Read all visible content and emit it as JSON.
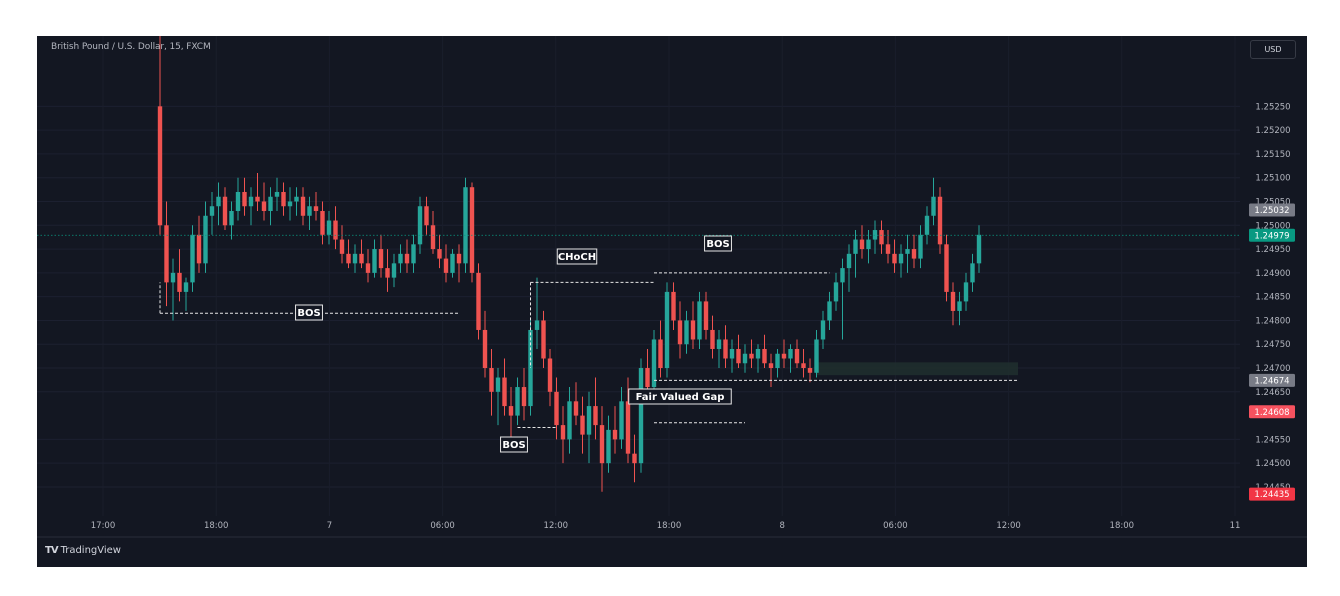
{
  "header": {
    "symbol_title": "British Pound / U.S. Dollar, 15, FXCM",
    "currency": "USD"
  },
  "footer": {
    "brand_mark": "TV",
    "brand_name": "TradingView"
  },
  "colors": {
    "background": "#131722",
    "bullish": "#26a69a",
    "bearish": "#ef5350",
    "current_price_line": "#089981",
    "axis_text": "#b2b5be",
    "zone_fill": "#1f2d2d"
  },
  "chart_data": {
    "type": "candlestick",
    "title": "British Pound / U.S. Dollar, 15, FXCM",
    "y_axis": {
      "min": 1.2441,
      "max": 1.2536,
      "ticks": [
        "1.25250",
        "1.25200",
        "1.25150",
        "1.25100",
        "1.25050",
        "1.25000",
        "1.24950",
        "1.24900",
        "1.24850",
        "1.24800",
        "1.24750",
        "1.24700",
        "1.24650",
        "1.24550",
        "1.24500",
        "1.24450"
      ]
    },
    "x_axis": {
      "ticks": [
        "17:00",
        "18:00",
        "7",
        "06:00",
        "12:00",
        "18:00",
        "8",
        "06:00",
        "12:00",
        "18:00",
        "11"
      ]
    },
    "price_labels": [
      {
        "text": "1.25032",
        "value": 1.25032,
        "color": "#787b86"
      },
      {
        "text": "1.24979",
        "value": 1.24979,
        "color": "#089981"
      },
      {
        "text": "1.24674",
        "value": 1.24674,
        "color": "#787b86"
      },
      {
        "text": "1.24608",
        "value": 1.24608,
        "color": "#f7525f"
      },
      {
        "text": "1.24435",
        "value": 1.24435,
        "color": "#f23645"
      }
    ],
    "current_price": 1.24979,
    "candles": [
      [
        1.2525,
        1.254,
        1.2498,
        1.25
      ],
      [
        1.25,
        1.2505,
        1.2483,
        1.2488
      ],
      [
        1.2488,
        1.2493,
        1.248,
        1.249
      ],
      [
        1.249,
        1.2495,
        1.2484,
        1.2486
      ],
      [
        1.2486,
        1.2489,
        1.2482,
        1.2488
      ],
      [
        1.2488,
        1.25,
        1.2486,
        1.2498
      ],
      [
        1.2498,
        1.2502,
        1.249,
        1.2492
      ],
      [
        1.2492,
        1.2505,
        1.249,
        1.2502
      ],
      [
        1.2502,
        1.2507,
        1.2498,
        1.2504
      ],
      [
        1.2504,
        1.2509,
        1.25,
        1.2506
      ],
      [
        1.2506,
        1.2508,
        1.2499,
        1.25
      ],
      [
        1.25,
        1.2505,
        1.2497,
        1.2503
      ],
      [
        1.2503,
        1.251,
        1.2501,
        1.2507
      ],
      [
        1.2507,
        1.251,
        1.2502,
        1.2504
      ],
      [
        1.2504,
        1.2508,
        1.25,
        1.2506
      ],
      [
        1.2506,
        1.2511,
        1.2503,
        1.2505
      ],
      [
        1.2505,
        1.2509,
        1.2501,
        1.2503
      ],
      [
        1.2503,
        1.2508,
        1.25,
        1.2506
      ],
      [
        1.2506,
        1.251,
        1.2503,
        1.2507
      ],
      [
        1.2507,
        1.2509,
        1.2502,
        1.2504
      ],
      [
        1.2504,
        1.2508,
        1.2501,
        1.2505
      ],
      [
        1.2505,
        1.2508,
        1.2502,
        1.2506
      ],
      [
        1.2506,
        1.2508,
        1.25,
        1.2502
      ],
      [
        1.2502,
        1.2506,
        1.2499,
        1.2504
      ],
      [
        1.2504,
        1.2507,
        1.2501,
        1.2503
      ],
      [
        1.2503,
        1.2505,
        1.2496,
        1.2498
      ],
      [
        1.2498,
        1.2503,
        1.2496,
        1.2501
      ],
      [
        1.2501,
        1.2504,
        1.2495,
        1.2497
      ],
      [
        1.2497,
        1.25,
        1.2492,
        1.2494
      ],
      [
        1.2494,
        1.2497,
        1.2491,
        1.2492
      ],
      [
        1.2492,
        1.2496,
        1.249,
        1.2494
      ],
      [
        1.2494,
        1.2497,
        1.2491,
        1.2492
      ],
      [
        1.2492,
        1.2495,
        1.2488,
        1.249
      ],
      [
        1.249,
        1.2497,
        1.2489,
        1.2495
      ],
      [
        1.2495,
        1.2498,
        1.2489,
        1.2491
      ],
      [
        1.2491,
        1.2495,
        1.2486,
        1.2489
      ],
      [
        1.2489,
        1.2494,
        1.2487,
        1.2492
      ],
      [
        1.2492,
        1.2496,
        1.249,
        1.2494
      ],
      [
        1.2494,
        1.2497,
        1.249,
        1.2492
      ],
      [
        1.2492,
        1.2498,
        1.249,
        1.2496
      ],
      [
        1.2496,
        1.2506,
        1.2494,
        1.2504
      ],
      [
        1.2504,
        1.2506,
        1.2498,
        1.25
      ],
      [
        1.25,
        1.2503,
        1.2494,
        1.2495
      ],
      [
        1.2495,
        1.2498,
        1.2491,
        1.2493
      ],
      [
        1.2493,
        1.2496,
        1.2488,
        1.249
      ],
      [
        1.249,
        1.2495,
        1.2489,
        1.2494
      ],
      [
        1.2494,
        1.2496,
        1.2488,
        1.2492
      ],
      [
        1.2492,
        1.251,
        1.249,
        1.2508
      ],
      [
        1.2508,
        1.2509,
        1.2488,
        1.249
      ],
      [
        1.249,
        1.2492,
        1.2476,
        1.2478
      ],
      [
        1.2478,
        1.2482,
        1.2468,
        1.247
      ],
      [
        1.247,
        1.2474,
        1.246,
        1.2465
      ],
      [
        1.2465,
        1.247,
        1.2458,
        1.2468
      ],
      [
        1.2468,
        1.2472,
        1.246,
        1.2462
      ],
      [
        1.2462,
        1.2466,
        1.2455,
        1.246
      ],
      [
        1.246,
        1.2468,
        1.2458,
        1.2466
      ],
      [
        1.2466,
        1.247,
        1.2459,
        1.2462
      ],
      [
        1.2462,
        1.248,
        1.246,
        1.2478
      ],
      [
        1.2478,
        1.2489,
        1.2474,
        1.248
      ],
      [
        1.248,
        1.2482,
        1.247,
        1.2472
      ],
      [
        1.2472,
        1.2474,
        1.2462,
        1.2465
      ],
      [
        1.2465,
        1.2468,
        1.2455,
        1.2458
      ],
      [
        1.2458,
        1.2462,
        1.245,
        1.2455
      ],
      [
        1.2455,
        1.2466,
        1.2452,
        1.2463
      ],
      [
        1.2463,
        1.2467,
        1.2458,
        1.246
      ],
      [
        1.246,
        1.2464,
        1.2452,
        1.2456
      ],
      [
        1.2456,
        1.2465,
        1.245,
        1.2462
      ],
      [
        1.2462,
        1.2468,
        1.2455,
        1.2458
      ],
      [
        1.2458,
        1.2462,
        1.2444,
        1.245
      ],
      [
        1.245,
        1.246,
        1.2448,
        1.2457
      ],
      [
        1.2457,
        1.2462,
        1.2452,
        1.2455
      ],
      [
        1.2455,
        1.2466,
        1.2453,
        1.2463
      ],
      [
        1.2463,
        1.2468,
        1.245,
        1.2452
      ],
      [
        1.2452,
        1.2456,
        1.2446,
        1.245
      ],
      [
        1.245,
        1.2472,
        1.2448,
        1.247
      ],
      [
        1.247,
        1.2474,
        1.2464,
        1.2466
      ],
      [
        1.2466,
        1.2478,
        1.2463,
        1.2476
      ],
      [
        1.2476,
        1.248,
        1.2468,
        1.247
      ],
      [
        1.247,
        1.2488,
        1.2468,
        1.2486
      ],
      [
        1.2486,
        1.2488,
        1.2478,
        1.248
      ],
      [
        1.248,
        1.2484,
        1.2472,
        1.2475
      ],
      [
        1.2475,
        1.2482,
        1.2473,
        1.248
      ],
      [
        1.248,
        1.2484,
        1.2474,
        1.2476
      ],
      [
        1.2476,
        1.2486,
        1.2474,
        1.2484
      ],
      [
        1.2484,
        1.2486,
        1.2476,
        1.2478
      ],
      [
        1.2478,
        1.2481,
        1.2472,
        1.2474
      ],
      [
        1.2474,
        1.2478,
        1.247,
        1.2476
      ],
      [
        1.2476,
        1.2479,
        1.247,
        1.2472
      ],
      [
        1.2472,
        1.2476,
        1.2469,
        1.2474
      ],
      [
        1.2474,
        1.2477,
        1.247,
        1.2471
      ],
      [
        1.2471,
        1.2475,
        1.2469,
        1.2473
      ],
      [
        1.2473,
        1.2476,
        1.247,
        1.2472
      ],
      [
        1.2472,
        1.2475,
        1.2469,
        1.2474
      ],
      [
        1.2474,
        1.2477,
        1.247,
        1.2471
      ],
      [
        1.2471,
        1.2473,
        1.2466,
        1.247
      ],
      [
        1.247,
        1.2474,
        1.2468,
        1.2473
      ],
      [
        1.2473,
        1.2476,
        1.247,
        1.2472
      ],
      [
        1.2472,
        1.2475,
        1.2469,
        1.2474
      ],
      [
        1.2474,
        1.2476,
        1.247,
        1.2471
      ],
      [
        1.2471,
        1.2474,
        1.2468,
        1.247
      ],
      [
        1.247,
        1.2472,
        1.2467,
        1.2469
      ],
      [
        1.2469,
        1.2478,
        1.2468,
        1.2476
      ],
      [
        1.2476,
        1.2482,
        1.2474,
        1.248
      ],
      [
        1.248,
        1.2486,
        1.2478,
        1.2484
      ],
      [
        1.2484,
        1.249,
        1.2482,
        1.2488
      ],
      [
        1.2488,
        1.2493,
        1.2476,
        1.2491
      ],
      [
        1.2491,
        1.2496,
        1.2486,
        1.2494
      ],
      [
        1.2494,
        1.2499,
        1.2489,
        1.2497
      ],
      [
        1.2497,
        1.25,
        1.2493,
        1.2495
      ],
      [
        1.2495,
        1.2499,
        1.2492,
        1.2497
      ],
      [
        1.2497,
        1.2501,
        1.2494,
        1.2499
      ],
      [
        1.2499,
        1.2501,
        1.2494,
        1.2496
      ],
      [
        1.2496,
        1.2499,
        1.2492,
        1.2494
      ],
      [
        1.2494,
        1.2497,
        1.249,
        1.2492
      ],
      [
        1.2492,
        1.2496,
        1.2489,
        1.2494
      ],
      [
        1.2494,
        1.2498,
        1.249,
        1.2495
      ],
      [
        1.2495,
        1.2498,
        1.2491,
        1.2493
      ],
      [
        1.2493,
        1.25,
        1.2491,
        1.2498
      ],
      [
        1.2498,
        1.2504,
        1.2496,
        1.2502
      ],
      [
        1.2502,
        1.251,
        1.25,
        1.2506
      ],
      [
        1.2506,
        1.2508,
        1.2494,
        1.2496
      ],
      [
        1.2496,
        1.2498,
        1.2484,
        1.2486
      ],
      [
        1.2486,
        1.2488,
        1.2479,
        1.2482
      ],
      [
        1.2482,
        1.2486,
        1.2479,
        1.2484
      ],
      [
        1.2484,
        1.249,
        1.2482,
        1.2488
      ],
      [
        1.2488,
        1.2494,
        1.2486,
        1.2492
      ],
      [
        1.2492,
        1.25,
        1.249,
        1.2498
      ]
    ],
    "annotations": [
      {
        "type": "hline",
        "name": "bos-line-1",
        "from": 0,
        "to": 46,
        "price": 1.24815,
        "label": "BOS"
      },
      {
        "type": "hline",
        "name": "choch-line",
        "from": 57,
        "to": 76,
        "price": 1.2488,
        "label": "CHoCH"
      },
      {
        "type": "hline",
        "name": "bos-line-2",
        "from": 76,
        "to": 103,
        "price": 1.249,
        "label": "BOS"
      },
      {
        "type": "hline",
        "name": "bos-line-3",
        "from": 55,
        "to": 61,
        "price": 1.24575,
        "label": "BOS"
      },
      {
        "type": "hline",
        "name": "fvg-line",
        "from": 76,
        "to": 90,
        "price": 1.24585
      },
      {
        "type": "hline",
        "name": "fvg-top-line",
        "from": 76,
        "to": 132,
        "price": 1.24674,
        "label": "Fair Valued Gap"
      },
      {
        "type": "zone",
        "name": "demand-zone",
        "from": 101,
        "to": 132,
        "low": 1.24685,
        "high": 1.24712
      }
    ]
  }
}
